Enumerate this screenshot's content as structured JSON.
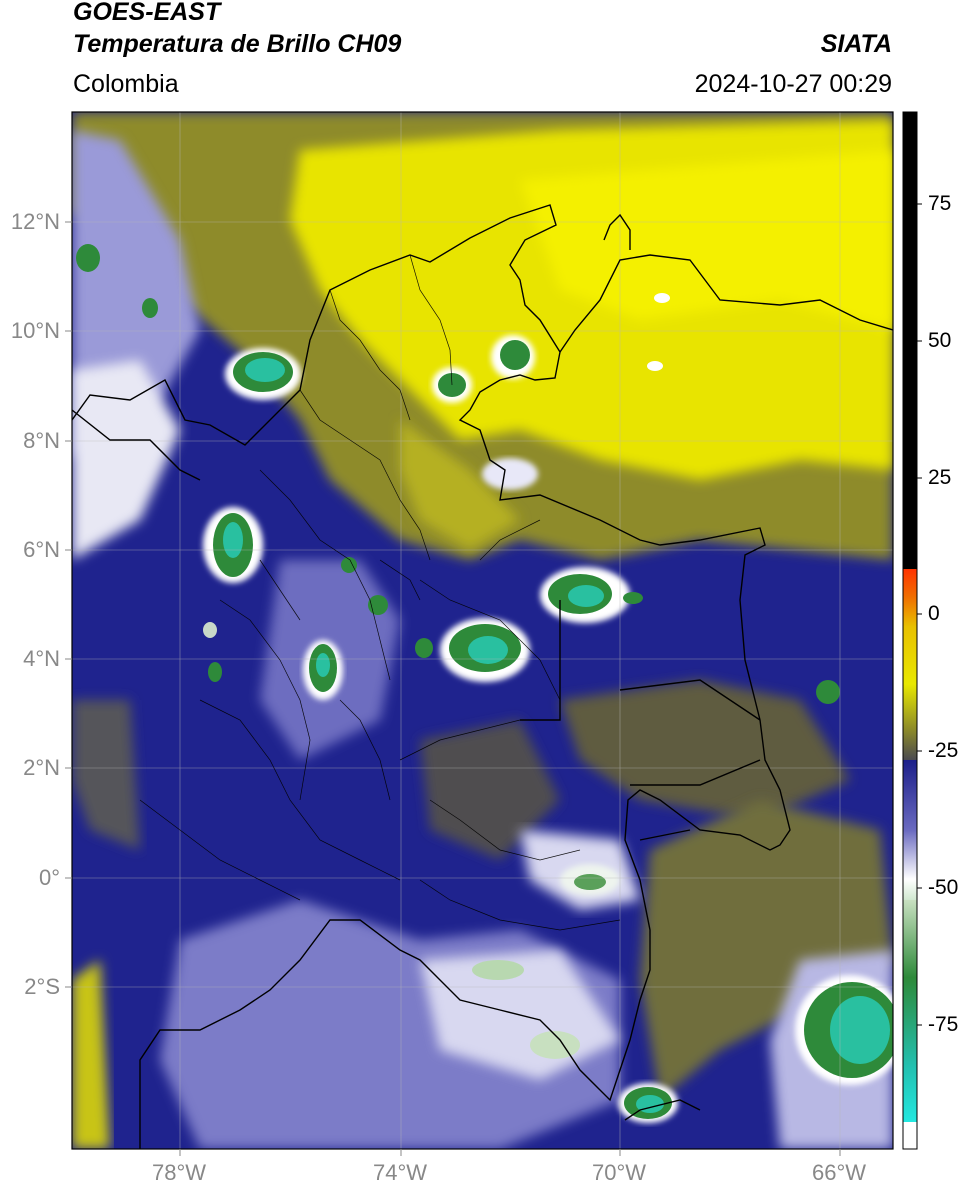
{
  "header": {
    "satellite": "GOES-EAST",
    "product": "Temperatura de Brillo CH09",
    "brand": "SIATA",
    "region": "Colombia",
    "timestamp": "2024-10-27 00:29"
  },
  "map": {
    "lon_range": [
      -80,
      -64.85
    ],
    "lat_range": [
      -4.25,
      14
    ],
    "lat_labels": [
      "12°N",
      "10°N",
      "8°N",
      "6°N",
      "4°N",
      "2°N",
      "0°",
      "2°S"
    ],
    "lon_labels": [
      "78°W",
      "74°W",
      "70°W",
      "66°W"
    ],
    "gridlines": true,
    "colors": {
      "yellow": "#f2ee00",
      "olive": "#8c8a28",
      "navy": "#1c1f8a",
      "lavender": "#a8a8e0",
      "white": "#ffffff",
      "green": "#2e8a3a",
      "cyan": "#23d0c8"
    }
  },
  "colorbar": {
    "labels": [
      "75",
      "50",
      "25",
      "0",
      "-25",
      "-50",
      "-75"
    ],
    "range": [
      -95,
      90
    ],
    "segments": [
      {
        "from": 8,
        "to": 90,
        "color": "#000000"
      },
      {
        "from": -12,
        "to": 8,
        "color": "#f07000"
      },
      {
        "from": -25,
        "to": -12,
        "color": "#d8d000"
      },
      {
        "from": -55,
        "to": -25,
        "color": "#1c1f8a"
      },
      {
        "from": -88,
        "to": -55,
        "color": "#2e8a3a"
      },
      {
        "from": -95,
        "to": -88,
        "color": "#ffffff"
      }
    ]
  }
}
